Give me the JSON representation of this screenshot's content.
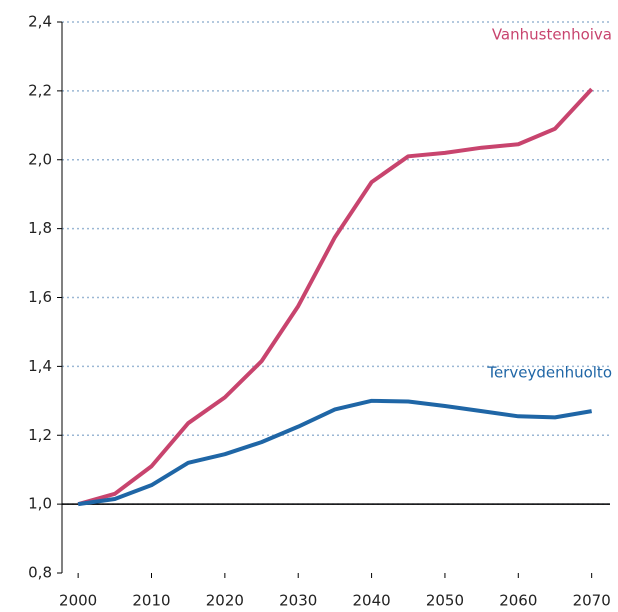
{
  "chart_data": {
    "type": "line",
    "x": [
      2000,
      2005,
      2010,
      2015,
      2020,
      2025,
      2030,
      2035,
      2040,
      2045,
      2050,
      2055,
      2060,
      2065,
      2070
    ],
    "series": [
      {
        "name": "Vanhustenhoiva",
        "color": "#c8446e",
        "values": [
          1.0,
          1.03,
          1.11,
          1.235,
          1.31,
          1.415,
          1.575,
          1.775,
          1.935,
          2.01,
          2.02,
          2.035,
          2.045,
          2.09,
          2.205
        ]
      },
      {
        "name": "Terveydenhuolto",
        "color": "#1f66a6",
        "values": [
          1.0,
          1.015,
          1.055,
          1.12,
          1.145,
          1.18,
          1.225,
          1.275,
          1.3,
          1.298,
          1.285,
          1.27,
          1.255,
          1.252,
          1.27
        ]
      }
    ],
    "xlim": [
      1997.8,
      2072.5
    ],
    "xticks": [
      2000,
      2010,
      2020,
      2030,
      2040,
      2050,
      2060,
      2070
    ],
    "ylim": [
      0.8,
      2.4
    ],
    "yticks": [
      {
        "value": 0.8,
        "label": "0,8"
      },
      {
        "value": 1.0,
        "label": "1,0"
      },
      {
        "value": 1.2,
        "label": "1,2"
      },
      {
        "value": 1.4,
        "label": "1,4"
      },
      {
        "value": 1.6,
        "label": "1,6"
      },
      {
        "value": 1.8,
        "label": "1,8"
      },
      {
        "value": 2.0,
        "label": "2,0"
      },
      {
        "value": 2.2,
        "label": "2,2"
      },
      {
        "value": 2.4,
        "label": "2,4"
      }
    ],
    "grid": true,
    "reference_line": 1.0
  }
}
